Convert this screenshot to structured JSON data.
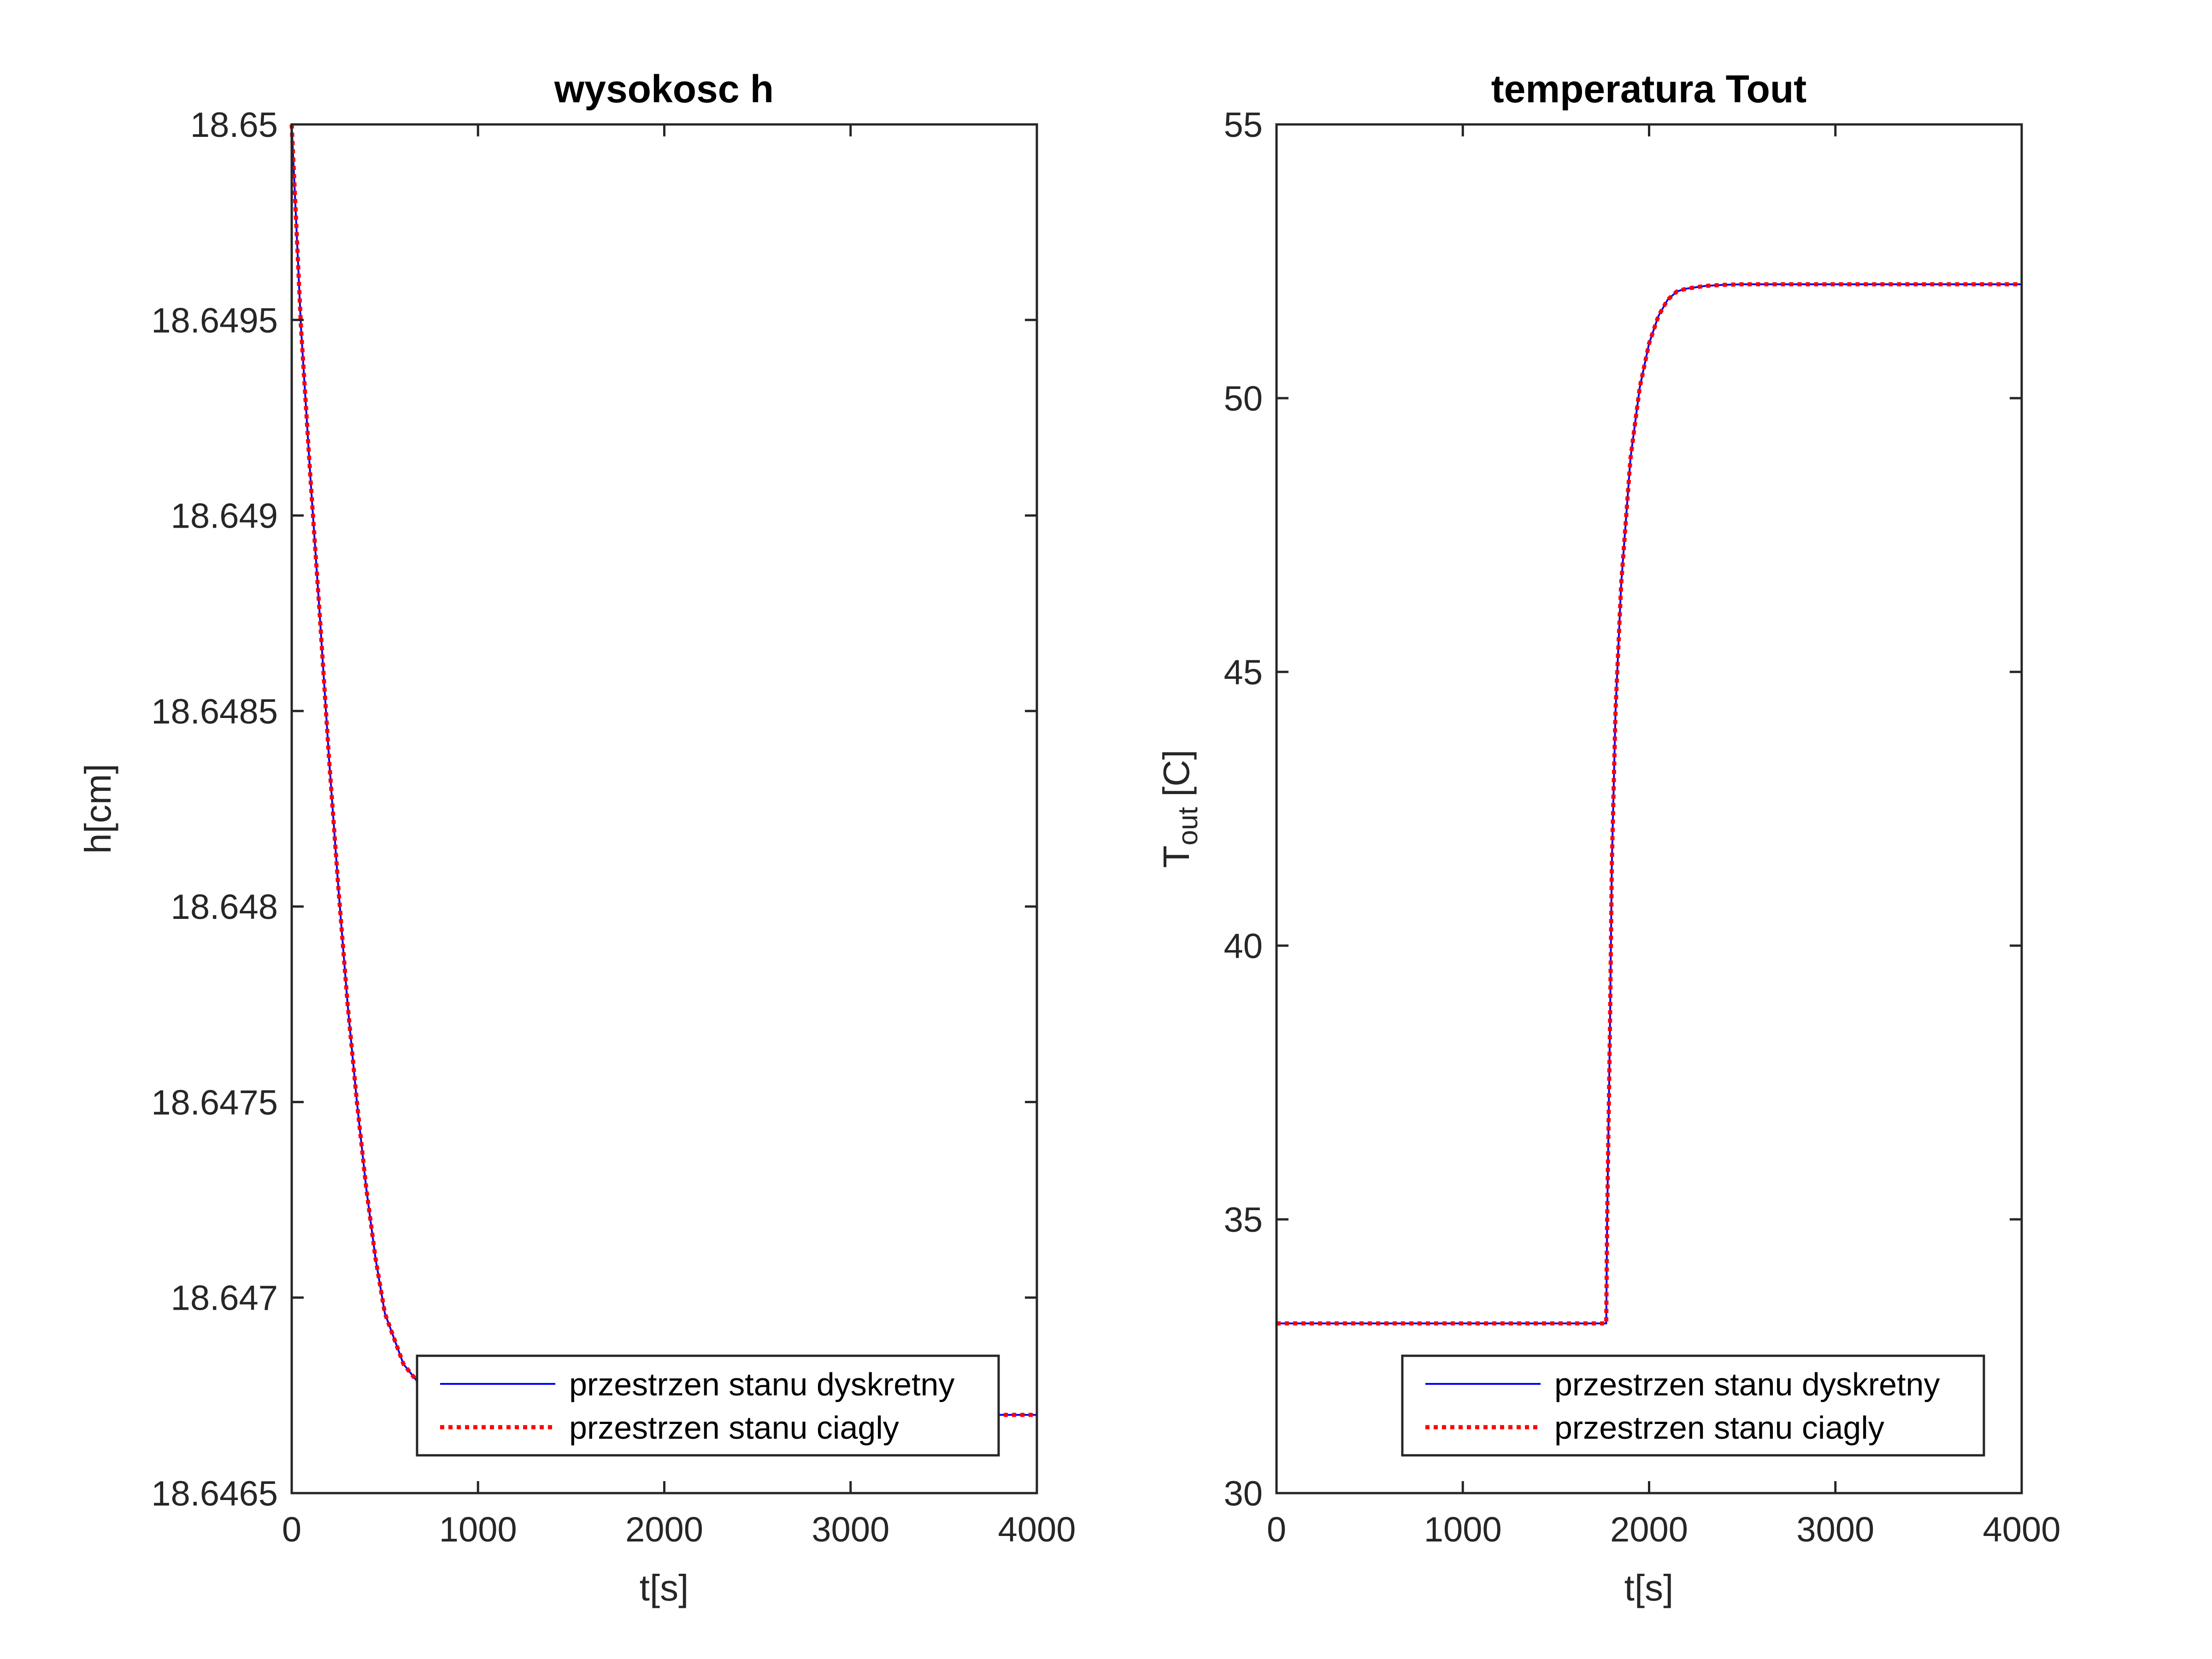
{
  "chart_data": [
    {
      "type": "line",
      "title": "wysokosc h",
      "xlabel": "t[s]",
      "ylabel": "h[cm]",
      "xlim": [
        0,
        4000
      ],
      "ylim": [
        18.6465,
        18.65
      ],
      "xticks": [
        0,
        1000,
        2000,
        3000,
        4000
      ],
      "xtick_labels": [
        "0",
        "1000",
        "2000",
        "3000",
        "4000"
      ],
      "yticks": [
        18.6465,
        18.647,
        18.6475,
        18.648,
        18.6485,
        18.649,
        18.6495,
        18.65
      ],
      "ytick_labels": [
        "18.6465",
        "18.647",
        "18.6475",
        "18.648",
        "18.6485",
        "18.649",
        "18.6495",
        "18.65"
      ],
      "grid": false,
      "legend_position": "bottom-right",
      "x": [
        0,
        50,
        100,
        150,
        200,
        250,
        300,
        350,
        400,
        450,
        500,
        600,
        700,
        800,
        900,
        1000,
        1200,
        1500,
        2000,
        2500,
        3000,
        3500,
        4000
      ],
      "series": [
        {
          "name": "przestrzen stanu dyskretny",
          "color": "#0000ff",
          "style": "solid",
          "values": [
            18.65,
            18.64948,
            18.6491,
            18.64875,
            18.64838,
            18.64805,
            18.64775,
            18.6475,
            18.64728,
            18.6471,
            18.64696,
            18.64683,
            18.64677,
            18.64673,
            18.64671,
            18.6467,
            18.6467,
            18.6467,
            18.6467,
            18.6467,
            18.6467,
            18.6467,
            18.6467
          ]
        },
        {
          "name": "przestrzen stanu ciagly",
          "color": "#ff0000",
          "style": "dotted",
          "values": [
            18.65,
            18.64948,
            18.6491,
            18.64875,
            18.64838,
            18.64805,
            18.64775,
            18.6475,
            18.64728,
            18.6471,
            18.64696,
            18.64683,
            18.64677,
            18.64673,
            18.64671,
            18.6467,
            18.6467,
            18.6467,
            18.6467,
            18.6467,
            18.6467,
            18.6467,
            18.6467
          ]
        }
      ]
    },
    {
      "type": "line",
      "title": "temperatura Tout",
      "xlabel": "t[s]",
      "ylabel": "T",
      "ylabel_sub": "out",
      "ylabel_suffix": " [C]",
      "xlim": [
        0,
        4000
      ],
      "ylim": [
        30,
        55
      ],
      "xticks": [
        0,
        1000,
        2000,
        3000,
        4000
      ],
      "xtick_labels": [
        "0",
        "1000",
        "2000",
        "3000",
        "4000"
      ],
      "yticks": [
        30,
        35,
        40,
        45,
        50,
        55
      ],
      "ytick_labels": [
        "30",
        "35",
        "40",
        "45",
        "50",
        "55"
      ],
      "grid": false,
      "legend_position": "bottom-right",
      "x": [
        0,
        1750,
        1770,
        1775,
        1790,
        1800,
        1820,
        1850,
        1900,
        1950,
        2000,
        2050,
        2100,
        2150,
        2200,
        2300,
        2400,
        2500,
        3000,
        3500,
        4000
      ],
      "series": [
        {
          "name": "przestrzen stanu dyskretny",
          "color": "#0000ff",
          "style": "solid",
          "values": [
            33.1,
            33.1,
            33.1,
            35.0,
            38.5,
            41.5,
            44.3,
            46.6,
            48.9,
            50.2,
            51.0,
            51.5,
            51.8,
            51.95,
            52.0,
            52.05,
            52.07,
            52.08,
            52.08,
            52.08,
            52.08
          ]
        },
        {
          "name": "przestrzen stanu ciagly",
          "color": "#ff0000",
          "style": "dotted",
          "values": [
            33.1,
            33.1,
            33.1,
            35.0,
            38.5,
            41.5,
            44.3,
            46.6,
            48.9,
            50.2,
            51.0,
            51.5,
            51.8,
            51.95,
            52.0,
            52.05,
            52.07,
            52.08,
            52.08,
            52.08,
            52.08
          ]
        }
      ]
    }
  ]
}
